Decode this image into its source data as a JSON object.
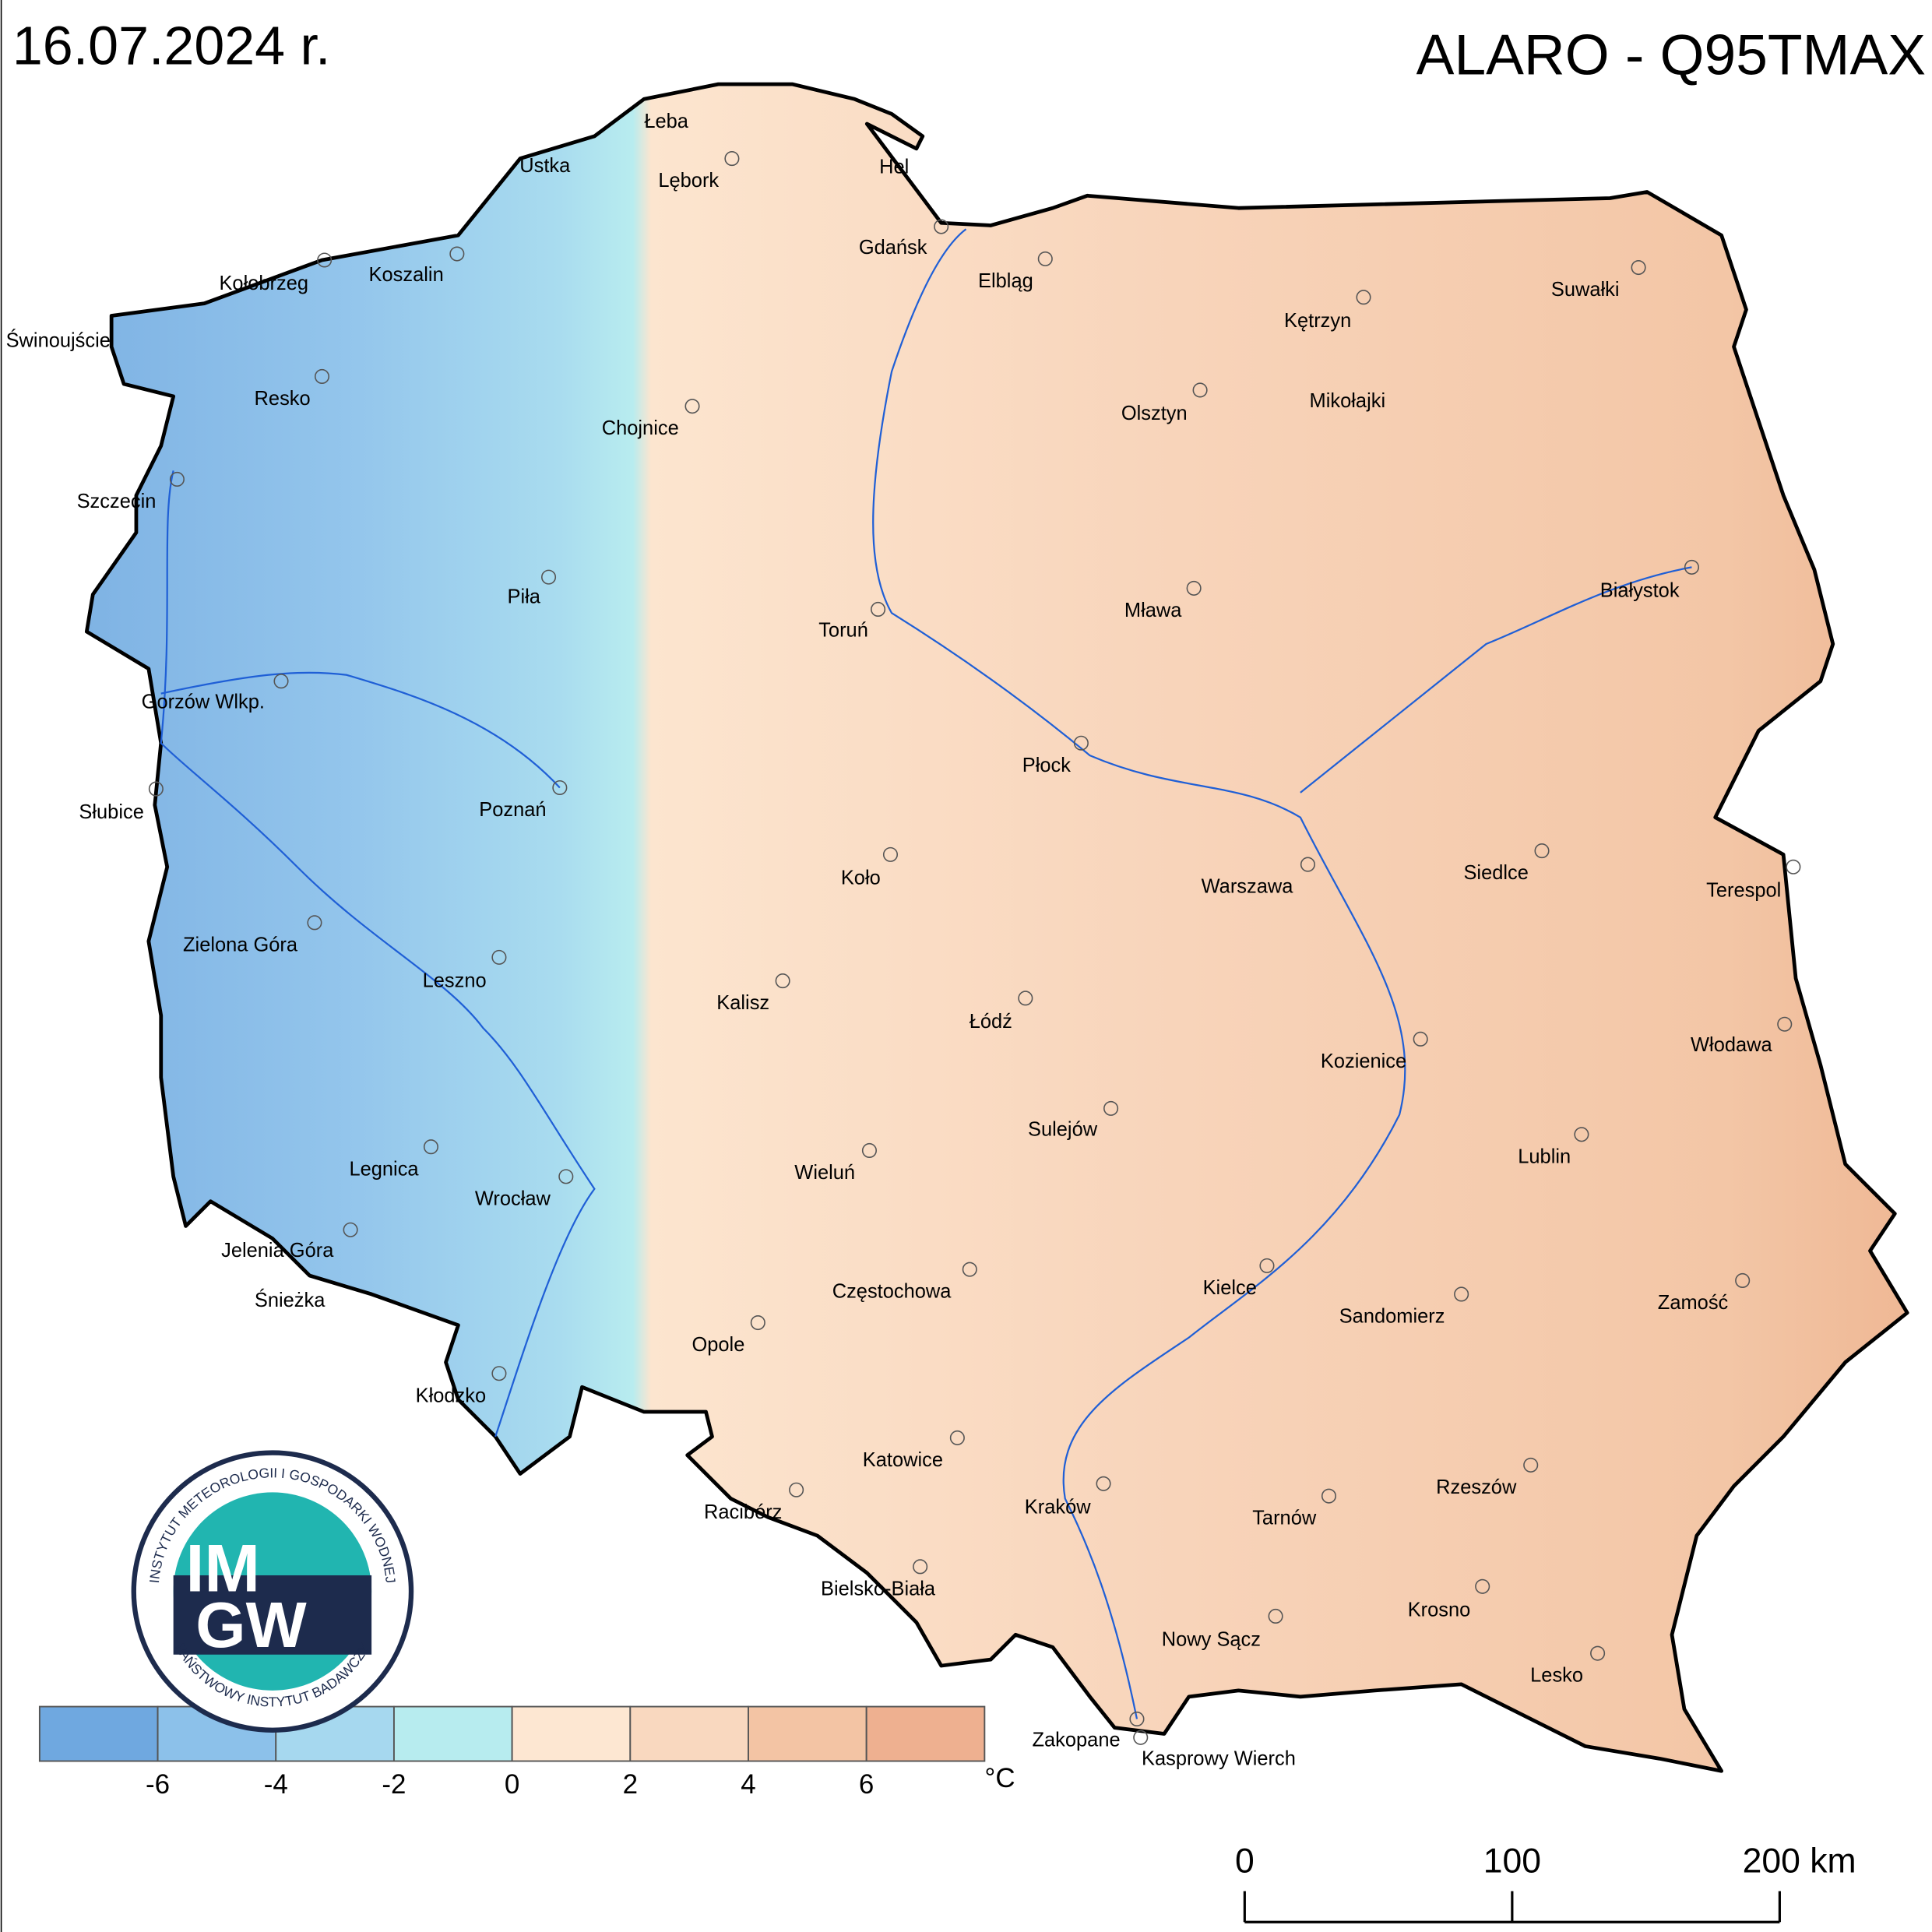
{
  "header": {
    "date": "16.07.2024 r.",
    "title": "ALARO - Q95TMAX"
  },
  "cities": [
    "Łeba",
    "Ustka",
    "Lębork",
    "Hel",
    "Gdańsk",
    "Elbląg",
    "Kołobrzeg",
    "Koszalin",
    "Świnoujście",
    "Resko",
    "Chojnice",
    "Szczecin",
    "Piła",
    "Toruń",
    "Gorzów Wlkp.",
    "Słubice",
    "Poznań",
    "Koło",
    "Zielona Góra",
    "Leszno",
    "Kalisz",
    "Łódź",
    "Legnica",
    "Wrocław",
    "Wieluń",
    "Sulejów",
    "Jelenia Góra",
    "Śnieżka",
    "Częstochowa",
    "Opole",
    "Kłodzko",
    "Katowice",
    "Racibórz",
    "Bielsko-Biała",
    "Kraków",
    "Tarnów",
    "Nowy Sącz",
    "Zakopane",
    "Kasprowy Wierch",
    "Kielce",
    "Sandomierz",
    "Rzeszów",
    "Krosno",
    "Lesko",
    "Zamość",
    "Lublin",
    "Włodawa",
    "Kozienice",
    "Warszawa",
    "Siedlce",
    "Terespol",
    "Płock",
    "Mława",
    "Białystok",
    "Olsztyn",
    "Mikołajki",
    "Kętrzyn",
    "Suwałki"
  ],
  "legend": {
    "colors": [
      "#6fa8e0",
      "#8cc1ea",
      "#a6d8ef",
      "#b7ecef",
      "#fde7d2",
      "#f9d8bf",
      "#f3c4a4",
      "#eeb090"
    ],
    "ticks": [
      -6,
      -4,
      -2,
      0,
      2,
      4,
      6
    ],
    "unit": "°C"
  },
  "scale_bar": {
    "labels": [
      "0",
      "100",
      "200 km"
    ]
  },
  "logo": {
    "top": "INSTYTUT METEOROLOGII I GOSPODARKI WODNEJ",
    "bottom": "PAŃSTWOWY INSTYTUT BADAWCZY",
    "letters_top": "IM",
    "letters_bottom": "GW"
  }
}
